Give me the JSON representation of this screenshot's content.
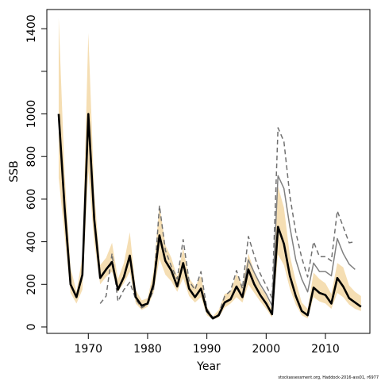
{
  "chart_data": {
    "type": "line",
    "title": "",
    "xlabel": "Year",
    "ylabel": "SSB",
    "xlim": [
      1963,
      2017.5
    ],
    "ylim": [
      -30,
      1490
    ],
    "x_ticks": [
      1970,
      1980,
      1990,
      2000,
      2010
    ],
    "y_ticks": [
      0,
      200,
      400,
      600,
      800,
      1000,
      1400
    ],
    "y_minor_ticks": [
      1200
    ],
    "credit": "stockassessment.org, Haddock-2016-ass01, r6977",
    "band": {
      "color": "#f5deb3",
      "years": [
        1965,
        1966,
        1967,
        1968,
        1969,
        1970,
        1971,
        1972,
        1973,
        1974,
        1975,
        1976,
        1977,
        1978,
        1979,
        1980,
        1981,
        1982,
        1983,
        1984,
        1985,
        1986,
        1987,
        1988,
        1989,
        1990,
        1991,
        1992,
        1993,
        1994,
        1995,
        1996,
        1997,
        1998,
        1999,
        2000,
        2001,
        2002,
        2003,
        2004,
        2005,
        2006,
        2007,
        2008,
        2009,
        2010,
        2011,
        2012,
        2013,
        2014,
        2015,
        2016
      ],
      "lower": [
        700,
        430,
        160,
        110,
        175,
        735,
        395,
        200,
        235,
        260,
        165,
        205,
        260,
        110,
        80,
        95,
        160,
        320,
        245,
        215,
        165,
        230,
        145,
        115,
        140,
        55,
        35,
        45,
        90,
        110,
        140,
        115,
        200,
        160,
        120,
        85,
        45,
        340,
        290,
        180,
        105,
        55,
        40,
        140,
        120,
        110,
        85,
        160,
        140,
        105,
        85,
        75
      ],
      "upper": [
        1450,
        720,
        280,
        165,
        330,
        1380,
        630,
        290,
        325,
        395,
        225,
        300,
        445,
        175,
        125,
        135,
        260,
        575,
        385,
        325,
        235,
        370,
        230,
        190,
        240,
        95,
        50,
        80,
        155,
        165,
        250,
        195,
        345,
        260,
        190,
        150,
        80,
        660,
        560,
        335,
        215,
        115,
        85,
        255,
        225,
        205,
        155,
        300,
        280,
        195,
        165,
        145
      ]
    },
    "series": [
      {
        "color": "#000000",
        "style": "solid-thick",
        "x": [
          1965,
          1966,
          1967,
          1968,
          1969,
          1970,
          1971,
          1972,
          1973,
          1974,
          1975,
          1976,
          1977,
          1978,
          1979,
          1980,
          1981,
          1982,
          1983,
          1984,
          1985,
          1986,
          1987,
          1988,
          1989,
          1990,
          1991,
          1992,
          1993,
          1994,
          1995,
          1996,
          1997,
          1998,
          1999,
          2000,
          2001,
          2002,
          2003,
          2004,
          2005,
          2006,
          2007,
          2008,
          2009,
          2010,
          2011,
          2012,
          2013,
          2014,
          2015,
          2016
        ],
        "y": [
          1000,
          560,
          200,
          140,
          245,
          1000,
          505,
          230,
          270,
          305,
          175,
          235,
          335,
          140,
          100,
          110,
          200,
          430,
          310,
          265,
          190,
          300,
          180,
          140,
          180,
          75,
          40,
          55,
          115,
          130,
          190,
          140,
          270,
          200,
          150,
          110,
          60,
          470,
          390,
          240,
          145,
          75,
          55,
          185,
          160,
          150,
          110,
          230,
          190,
          135,
          115,
          95
        ]
      },
      {
        "color": "#808080",
        "style": "solid",
        "x": [
          1996,
          1997,
          1998,
          1999,
          2000,
          2001,
          2002,
          2003,
          2004,
          2005,
          2006,
          2007,
          2008,
          2009,
          2010,
          2011,
          2012,
          2013,
          2014,
          2015
        ],
        "y": [
          150,
          315,
          255,
          200,
          155,
          100,
          710,
          650,
          470,
          315,
          225,
          165,
          300,
          260,
          260,
          240,
          415,
          345,
          295,
          270
        ]
      },
      {
        "color": "#707070",
        "style": "dashed",
        "x": [
          1972,
          1973,
          1974,
          1975,
          1976,
          1977,
          1978,
          1979,
          1980,
          1981,
          1982,
          1983,
          1984,
          1985,
          1986,
          1987,
          1988,
          1989,
          1990,
          1991,
          1992,
          1993,
          1994,
          1995,
          1996,
          1997,
          1998,
          1999,
          2000,
          2001,
          2002,
          2003,
          2004,
          2005,
          2006,
          2007,
          2008,
          2009,
          2010,
          2011,
          2012,
          2013,
          2014,
          2015
        ],
        "y": [
          110,
          145,
          345,
          120,
          175,
          210,
          130,
          90,
          105,
          175,
          570,
          360,
          285,
          225,
          410,
          215,
          175,
          260,
          85,
          45,
          60,
          145,
          170,
          265,
          180,
          425,
          335,
          250,
          195,
          135,
          935,
          870,
          615,
          445,
          325,
          235,
          400,
          330,
          330,
          310,
          545,
          470,
          395,
          400
        ]
      }
    ]
  }
}
